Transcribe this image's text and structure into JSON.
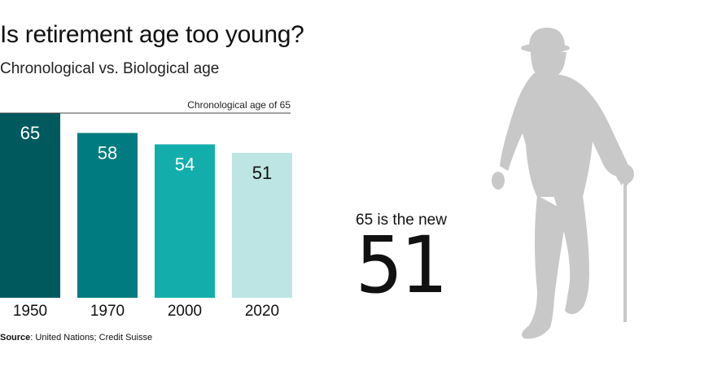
{
  "header": {
    "title": "Is retirement age too young?",
    "subtitle": "Chronological vs. Biological age"
  },
  "chart_data": {
    "type": "bar",
    "title": "Is retirement age too young?",
    "subtitle": "Chronological vs. Biological age",
    "categories": [
      "1950",
      "1970",
      "2000",
      "2020"
    ],
    "values": [
      65,
      58,
      54,
      51
    ],
    "colors": [
      "#005a5d",
      "#007b7f",
      "#13aeac",
      "#bde5e3"
    ],
    "label_colors": [
      "#ffffff",
      "#ffffff",
      "#ffffff",
      "#111111"
    ],
    "reference_line": {
      "value": 65,
      "label": "Chronological age of 65"
    },
    "xlabel": "",
    "ylabel": "",
    "ylim": [
      0,
      65
    ],
    "grid": false,
    "legend": "none"
  },
  "source": {
    "label": "Source",
    "text": ": United Nations; Credit Suisse"
  },
  "callout": {
    "lead": "65 is the new",
    "number": "51"
  },
  "illustration": {
    "icon": "elderly-man-with-cane-icon",
    "color": "#c8c8c8"
  }
}
